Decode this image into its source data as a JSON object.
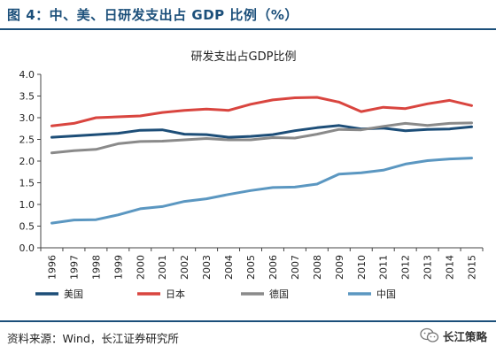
{
  "header": {
    "figure_title": "图 4：中、美、日研发支出占 GDP 比例（%）"
  },
  "footer": {
    "source": "资料来源：Wind，长江证券研究所",
    "watermark_label": "长江策略",
    "watermark_icon": "wechat-icon"
  },
  "chart_data": {
    "type": "line",
    "title": "研发支出占GDP比例",
    "xlabel": "",
    "ylabel": "",
    "ylim": [
      0,
      4.0
    ],
    "yticks": [
      "0.0",
      "0.5",
      "1.0",
      "1.5",
      "2.0",
      "2.5",
      "3.0",
      "3.5",
      "4.0"
    ],
    "grid": false,
    "legend_position": "bottom",
    "x": [
      "1996",
      "1997",
      "1998",
      "1999",
      "2000",
      "2001",
      "2002",
      "2003",
      "2004",
      "2005",
      "2006",
      "2007",
      "2008",
      "2009",
      "2010",
      "2011",
      "2012",
      "2013",
      "2014",
      "2015"
    ],
    "series": [
      {
        "name": "美国",
        "color": "#1d4e78",
        "values": [
          2.55,
          2.58,
          2.61,
          2.64,
          2.71,
          2.72,
          2.62,
          2.61,
          2.55,
          2.57,
          2.61,
          2.7,
          2.77,
          2.82,
          2.74,
          2.76,
          2.7,
          2.73,
          2.74,
          2.79
        ]
      },
      {
        "name": "日本",
        "color": "#d9453f",
        "values": [
          2.81,
          2.87,
          3.0,
          3.02,
          3.04,
          3.12,
          3.17,
          3.2,
          3.17,
          3.31,
          3.41,
          3.46,
          3.47,
          3.36,
          3.14,
          3.24,
          3.21,
          3.32,
          3.4,
          3.28
        ]
      },
      {
        "name": "德国",
        "color": "#8a8a8a",
        "values": [
          2.19,
          2.24,
          2.27,
          2.4,
          2.45,
          2.46,
          2.49,
          2.52,
          2.49,
          2.49,
          2.54,
          2.53,
          2.62,
          2.73,
          2.72,
          2.8,
          2.87,
          2.82,
          2.87,
          2.88
        ]
      },
      {
        "name": "中国",
        "color": "#5b97c1",
        "values": [
          0.57,
          0.64,
          0.65,
          0.76,
          0.9,
          0.95,
          1.07,
          1.13,
          1.23,
          1.32,
          1.39,
          1.4,
          1.47,
          1.7,
          1.73,
          1.79,
          1.93,
          2.01,
          2.05,
          2.07
        ]
      }
    ]
  }
}
